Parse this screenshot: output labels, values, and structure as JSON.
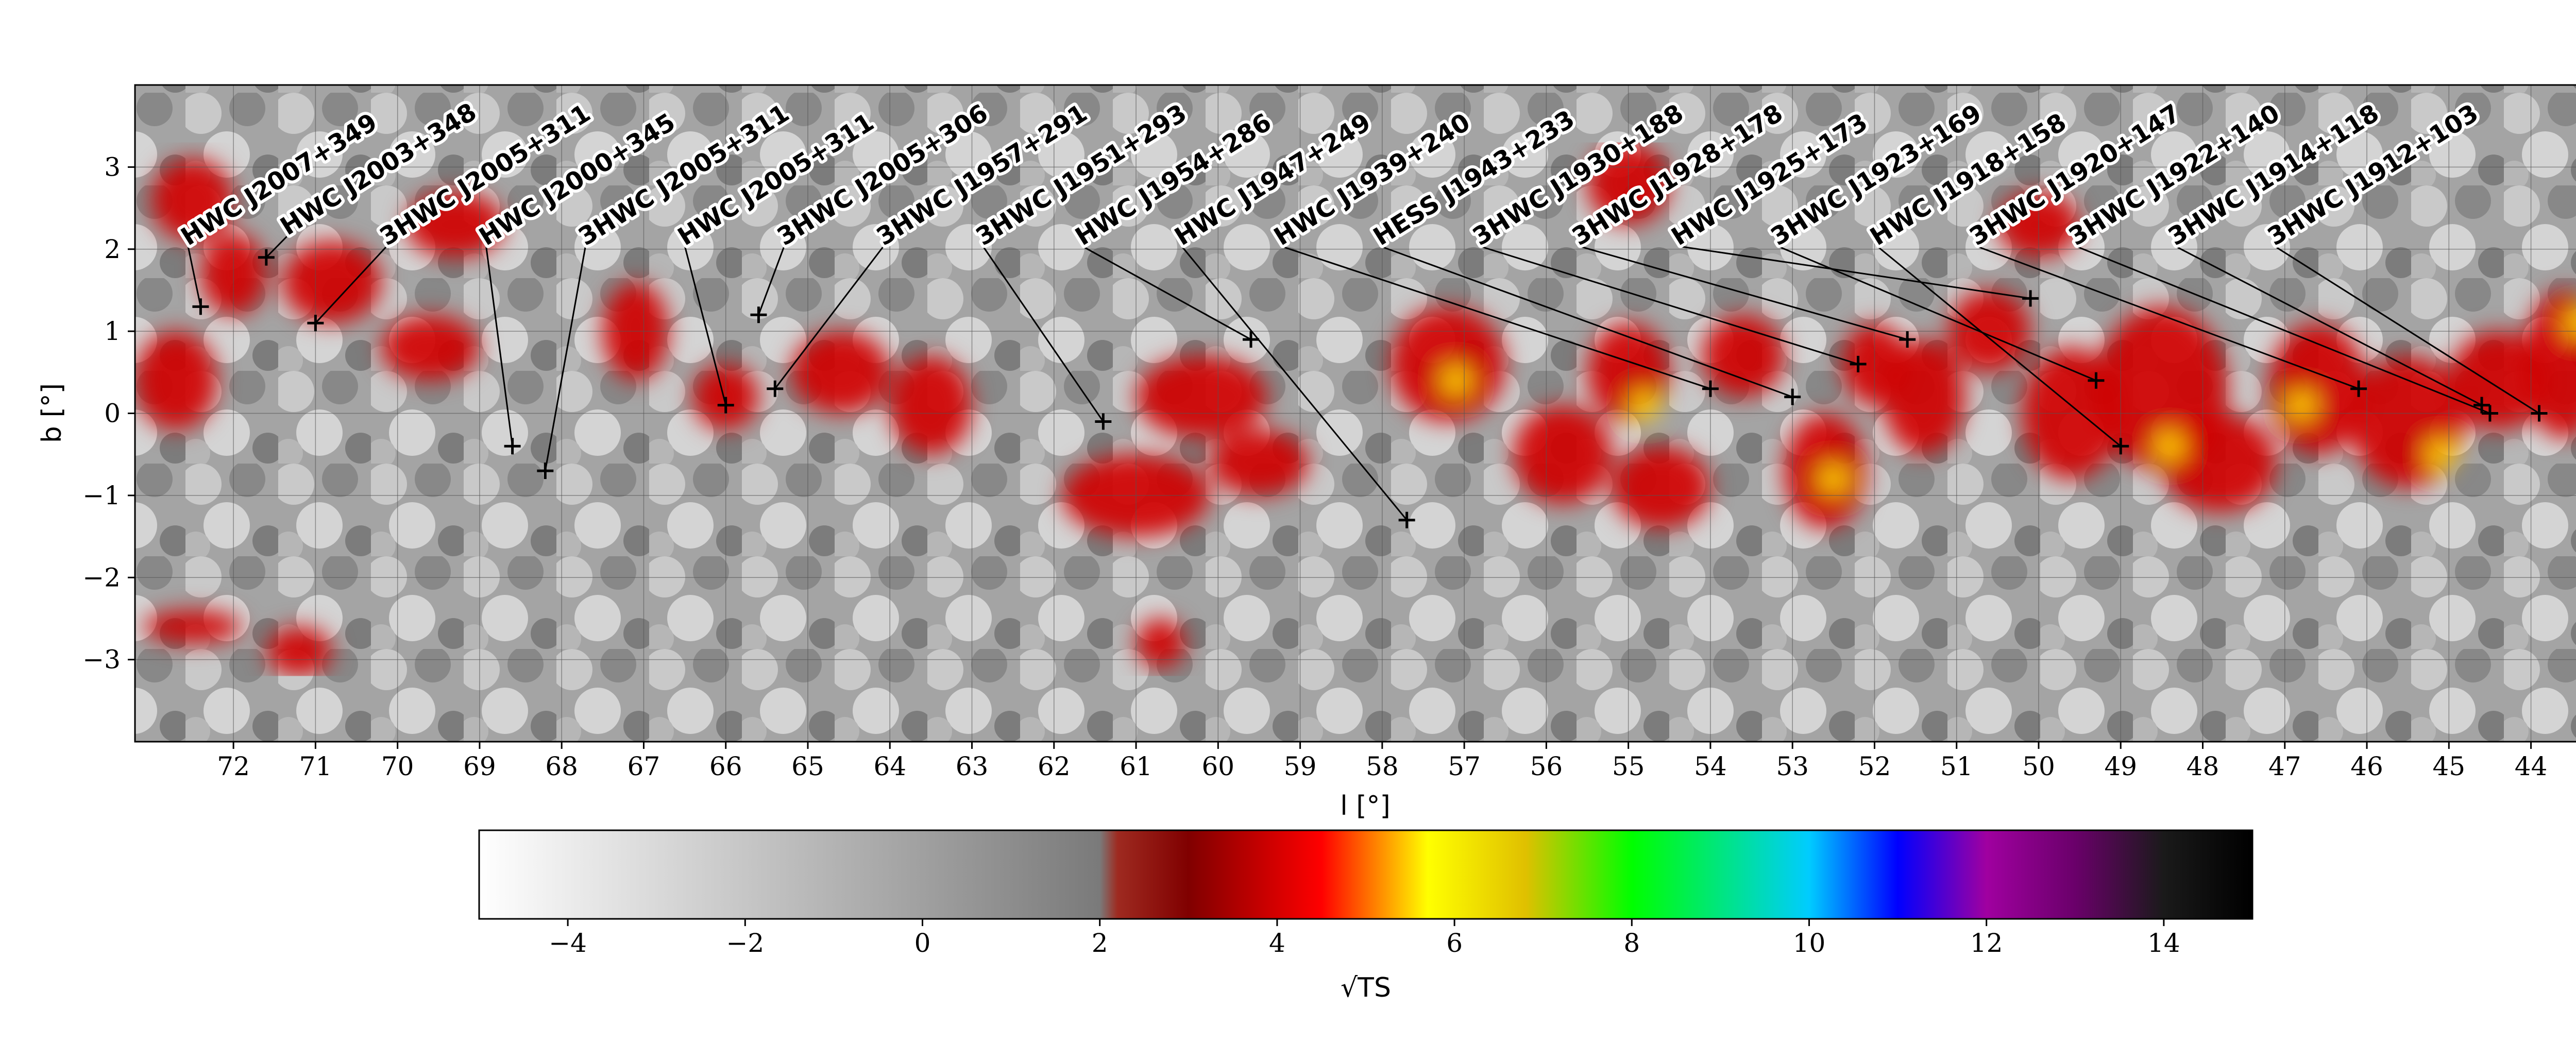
{
  "chart_data": {
    "type": "heatmap",
    "xlabel": "l [°]",
    "ylabel": "b [°]",
    "colorbar_label": "√TS",
    "x_range": [
      73.2,
      43.2
    ],
    "y_range": [
      -4.0,
      4.0
    ],
    "x_ticks": [
      72,
      71,
      70,
      69,
      68,
      67,
      66,
      65,
      64,
      63,
      62,
      61,
      60,
      59,
      58,
      57,
      56,
      55,
      54,
      53,
      52,
      51,
      50,
      49,
      48,
      47,
      46,
      45,
      44
    ],
    "y_ticks": [
      -3,
      -2,
      -1,
      0,
      1,
      2,
      3
    ],
    "colorbar_range": [
      -5,
      15
    ],
    "colorbar_ticks": [
      -4,
      -2,
      0,
      2,
      4,
      6,
      8,
      10,
      12,
      14
    ],
    "grid": true,
    "sources": [
      {
        "name": "HWC J2007+349",
        "l": 72.4,
        "b": 1.3
      },
      {
        "name": "HWC J2003+348",
        "l": 71.6,
        "b": 1.9
      },
      {
        "name": "3HWC J2005+311",
        "l": 71.0,
        "b": 1.1
      },
      {
        "name": "HWC J2000+345",
        "l": 68.6,
        "b": -0.4
      },
      {
        "name": "3HWC J2005+311",
        "l": 68.2,
        "b": -0.7
      },
      {
        "name": "HWC J2005+311",
        "l": 66.0,
        "b": 0.1
      },
      {
        "name": "3HWC J2005+306",
        "l": 65.6,
        "b": 1.2
      },
      {
        "name": "3HWC J1957+291",
        "l": 65.4,
        "b": 0.3
      },
      {
        "name": "3HWC J1951+293",
        "l": 61.4,
        "b": -0.1
      },
      {
        "name": "HWC J1954+286",
        "l": 59.6,
        "b": 0.9
      },
      {
        "name": "HWC J1947+249",
        "l": 57.7,
        "b": -1.3
      },
      {
        "name": "HWC J1939+240",
        "l": 54.0,
        "b": 0.3
      },
      {
        "name": "HESS J1943+233",
        "l": 53.0,
        "b": 0.2
      },
      {
        "name": "3HWC J1930+188",
        "l": 52.2,
        "b": 0.6
      },
      {
        "name": "3HWC J1928+178",
        "l": 51.6,
        "b": 0.9
      },
      {
        "name": "HWC J1925+173",
        "l": 50.1,
        "b": 1.4
      },
      {
        "name": "3HWC J1923+169",
        "l": 49.3,
        "b": 0.4
      },
      {
        "name": "HWC J1918+158",
        "l": 49.0,
        "b": -0.4
      },
      {
        "name": "3HWC J1920+147",
        "l": 46.1,
        "b": 0.3
      },
      {
        "name": "3HWC J1922+140",
        "l": 44.5,
        "b": 0.0
      },
      {
        "name": "3HWC J1914+118",
        "l": 44.6,
        "b": 0.1
      },
      {
        "name": "3HWC J1912+103",
        "l": 43.9,
        "b": 0.0
      }
    ]
  }
}
